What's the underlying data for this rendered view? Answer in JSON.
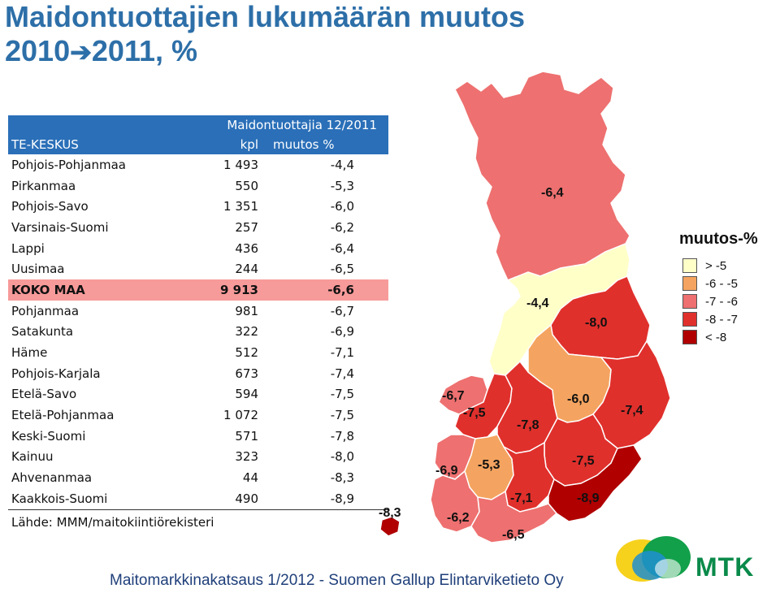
{
  "title_line1": "Maidontuottajien lukumäärän muutos",
  "title_line2_start": "2010",
  "title_arrow": "➔",
  "title_line2_end": "2011, %",
  "table": {
    "header_group": "Maidontuottajia 12/2011",
    "col1": "TE-KESKUS",
    "col2": "kpl",
    "col3": "muutos %",
    "rows": [
      {
        "name": "Pohjois-Pohjanmaa",
        "kpl": "1 493",
        "pct": "-4,4"
      },
      {
        "name": "Pirkanmaa",
        "kpl": "550",
        "pct": "-5,3"
      },
      {
        "name": "Pohjois-Savo",
        "kpl": "1 351",
        "pct": "-6,0"
      },
      {
        "name": "Varsinais-Suomi",
        "kpl": "257",
        "pct": "-6,2"
      },
      {
        "name": "Lappi",
        "kpl": "436",
        "pct": "-6,4"
      },
      {
        "name": "Uusimaa",
        "kpl": "244",
        "pct": "-6,5"
      },
      {
        "name": "KOKO MAA",
        "kpl": "9 913",
        "pct": "-6,6"
      },
      {
        "name": "Pohjanmaa",
        "kpl": "981",
        "pct": "-6,7"
      },
      {
        "name": "Satakunta",
        "kpl": "322",
        "pct": "-6,9"
      },
      {
        "name": "Häme",
        "kpl": "512",
        "pct": "-7,1"
      },
      {
        "name": "Pohjois-Karjala",
        "kpl": "673",
        "pct": "-7,4"
      },
      {
        "name": "Etelä-Savo",
        "kpl": "594",
        "pct": "-7,5"
      },
      {
        "name": "Etelä-Pohjanmaa",
        "kpl": "1 072",
        "pct": "-7,5"
      },
      {
        "name": "Keski-Suomi",
        "kpl": "571",
        "pct": "-7,8"
      },
      {
        "name": "Kainuu",
        "kpl": "323",
        "pct": "-8,0"
      },
      {
        "name": "Ahvenanmaa",
        "kpl": "44",
        "pct": "-8,3"
      },
      {
        "name": "Kaakkois-Suomi",
        "kpl": "490",
        "pct": "-8,9"
      }
    ]
  },
  "source": "Lähde: MMM/maitokiintiörekisteri",
  "footer": "Maitomarkkinakatsaus 1/2012 - Suomen Gallup Elintarviketieto Oy",
  "brand": "MTK",
  "legend": {
    "title": "muutos-%",
    "items": [
      {
        "label": "> -5",
        "color": "#ffffc8"
      },
      {
        "label": "-6 - -5",
        "color": "#f4a460"
      },
      {
        "label": "-7 - -6",
        "color": "#ee7070"
      },
      {
        "label": "-8 - -7",
        "color": "#e0302c"
      },
      {
        "label": "< -8",
        "color": "#b00000"
      }
    ]
  },
  "map_labels": {
    "lappi": "-6,4",
    "pohjois_pohjanmaa": "-4,4",
    "kainuu": "-8,0",
    "pohjanmaa": "-6,7",
    "etela_pohjanmaa": "-7,5",
    "keski_suomi": "-7,8",
    "pohjois_savo": "-6,0",
    "pohjois_karjala": "-7,4",
    "satakunta": "-6,9",
    "pirkanmaa": "-5,3",
    "etela_savo": "-7,5",
    "hame": "-7,1",
    "kaakkois_suomi": "-8,9",
    "ahvenanmaa": "-8,3",
    "varsinais_suomi": "-6,2",
    "uusimaa": "-6,5"
  },
  "chart_data": {
    "type": "table",
    "title": "Maidontuottajien lukumäärän muutos 2010➔2011, %",
    "columns": [
      "TE-KESKUS",
      "kpl",
      "muutos %"
    ],
    "categories": [
      "Pohjois-Pohjanmaa",
      "Pirkanmaa",
      "Pohjois-Savo",
      "Varsinais-Suomi",
      "Lappi",
      "Uusimaa",
      "KOKO MAA",
      "Pohjanmaa",
      "Satakunta",
      "Häme",
      "Pohjois-Karjala",
      "Etelä-Savo",
      "Etelä-Pohjanmaa",
      "Keski-Suomi",
      "Kainuu",
      "Ahvenanmaa",
      "Kaakkois-Suomi"
    ],
    "series": [
      {
        "name": "kpl",
        "values": [
          1493,
          550,
          1351,
          257,
          436,
          244,
          9913,
          981,
          322,
          512,
          673,
          594,
          1072,
          571,
          323,
          44,
          490
        ]
      },
      {
        "name": "muutos %",
        "values": [
          -4.4,
          -5.3,
          -6.0,
          -6.2,
          -6.4,
          -6.5,
          -6.6,
          -6.7,
          -6.9,
          -7.1,
          -7.4,
          -7.5,
          -7.5,
          -7.8,
          -8.0,
          -8.3,
          -8.9
        ]
      }
    ]
  }
}
